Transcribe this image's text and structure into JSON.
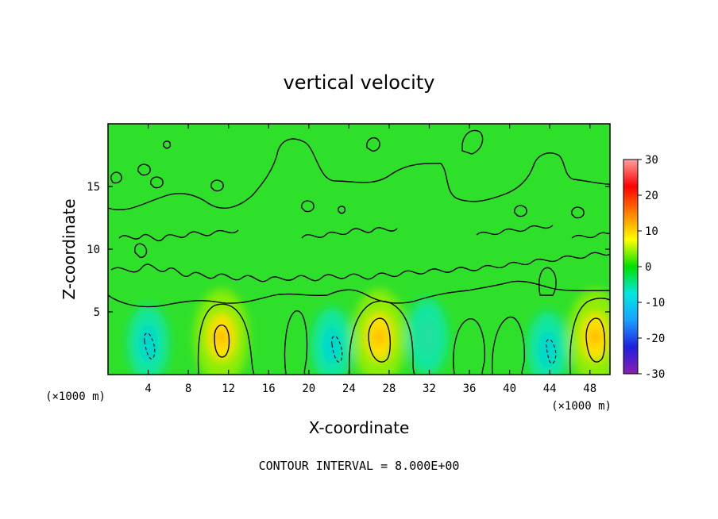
{
  "chart_data": {
    "type": "heatmap",
    "title": "vertical velocity",
    "xlabel": "X-coordinate",
    "ylabel": "Z-coordinate",
    "x_unit_left": "(×1000 m)",
    "x_unit_right": "(×1000 m)",
    "x_ticks": [
      4,
      8,
      12,
      16,
      20,
      24,
      28,
      32,
      36,
      40,
      44,
      48
    ],
    "y_ticks": [
      5,
      10,
      15
    ],
    "xlim": [
      0,
      50
    ],
    "ylim": [
      0,
      20
    ],
    "colorbar": {
      "ticks": [
        30,
        20,
        10,
        0,
        -10,
        -20,
        -30
      ],
      "range": [
        -30,
        30
      ],
      "colors": [
        "#8a1fb0",
        "#1f1fe0",
        "#1aa0ff",
        "#00e8e0",
        "#00e000",
        "#ffff00",
        "#ff8000",
        "#ff0000",
        "#ffa0a0"
      ]
    },
    "background_level": 2,
    "updraft_cores": [
      {
        "x": 11.3,
        "z": 3.0,
        "w": 12
      },
      {
        "x": 27.0,
        "z": 3.0,
        "w": 12
      },
      {
        "x": 48.5,
        "z": 3.0,
        "w": 12
      }
    ],
    "downdraft_cores": [
      {
        "x": 4.0,
        "z": 2.5,
        "w": -9
      },
      {
        "x": 22.3,
        "z": 2.3,
        "w": -9
      },
      {
        "x": 31.8,
        "z": 3.0,
        "w": -5
      },
      {
        "x": 43.8,
        "z": 2.0,
        "w": -9
      }
    ],
    "footnote": "CONTOUR INTERVAL = 8.000E+00"
  }
}
